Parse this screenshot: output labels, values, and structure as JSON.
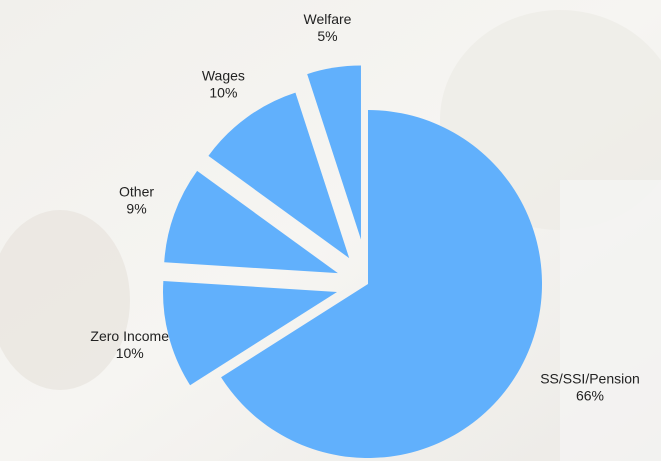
{
  "chart_data": {
    "type": "pie",
    "categories": [
      "SS/SSI/Pension",
      "Zero Income",
      "Other",
      "Wages",
      "Welfare"
    ],
    "values": [
      66,
      10,
      9,
      10,
      5
    ],
    "value_labels": [
      "66%",
      "10%",
      "9%",
      "10%",
      "5%"
    ],
    "color": "#61b0fc"
  }
}
